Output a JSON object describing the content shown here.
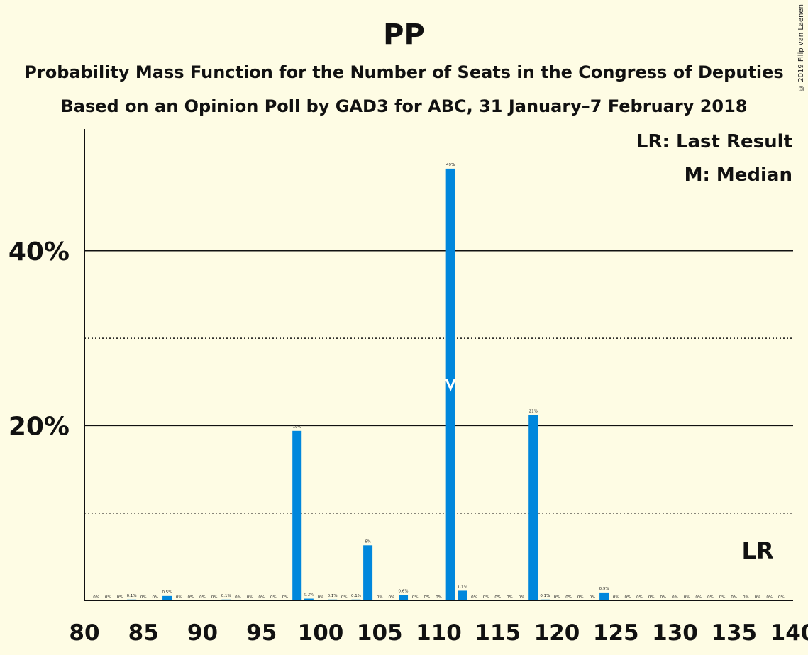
{
  "title": "PP",
  "subtitle1": "Probability Mass Function for the Number of Seats in the Congress of Deputies",
  "subtitle2": "Based on an Opinion Poll by GAD3 for ABC, 31 January–7 February 2018",
  "legend": {
    "last_result": "LR: Last Result",
    "median": "M: Median"
  },
  "copyright": "© 2019 Filip van Laenen",
  "colors": {
    "bar": "#0087DC",
    "background": "#FEFCE4",
    "text": "#111111"
  },
  "chart_data": {
    "type": "bar",
    "xlabel": "",
    "ylabel": "",
    "xlim": [
      80,
      140
    ],
    "ylim": [
      0,
      54
    ],
    "x_ticks": [
      80,
      85,
      90,
      95,
      100,
      105,
      110,
      115,
      120,
      125,
      130,
      135,
      140
    ],
    "y_ticks_major": [
      {
        "value": 20,
        "label": "20%"
      },
      {
        "value": 40,
        "label": "40%"
      }
    ],
    "y_gridlines_dotted": [
      10,
      30
    ],
    "median_seats": 111,
    "last_result_seats": 137,
    "last_result_label": "LR",
    "seats": [
      81,
      82,
      83,
      84,
      85,
      86,
      87,
      88,
      89,
      90,
      91,
      92,
      93,
      94,
      95,
      96,
      97,
      98,
      99,
      100,
      101,
      102,
      103,
      104,
      105,
      106,
      107,
      108,
      109,
      110,
      111,
      112,
      113,
      114,
      115,
      116,
      117,
      118,
      119,
      120,
      121,
      122,
      123,
      124,
      125,
      126,
      127,
      128,
      129,
      130,
      131,
      132,
      133,
      134,
      135,
      136,
      137,
      138,
      139
    ],
    "values": [
      0,
      0,
      0,
      0.1,
      0,
      0,
      0.5,
      0,
      0,
      0,
      0,
      0.1,
      0,
      0,
      0,
      0,
      0,
      19.4,
      0.2,
      0,
      0.1,
      0,
      0.1,
      6.3,
      0,
      0,
      0.6,
      0,
      0,
      0,
      49.4,
      1.1,
      0,
      0,
      0,
      0,
      0,
      21.2,
      0.1,
      0,
      0,
      0,
      0,
      0.9,
      0,
      0,
      0,
      0,
      0,
      0,
      0,
      0,
      0,
      0,
      0,
      0,
      0,
      0,
      0
    ],
    "data_labels": [
      "0%",
      "0%",
      "0%",
      "0.1%",
      "0%",
      "0%",
      "0.5%",
      "0%",
      "0%",
      "0%",
      "0%",
      "0.1%",
      "0%",
      "0%",
      "0%",
      "0%",
      "0%",
      "19%",
      "0.2%",
      "0%",
      "0.1%",
      "0%",
      "0.1%",
      "6%",
      "0%",
      "0%",
      "0.6%",
      "0%",
      "0%",
      "0%",
      "49%",
      "1.1%",
      "0%",
      "0%",
      "0%",
      "0%",
      "0%",
      "21%",
      "0.1%",
      "0%",
      "0%",
      "0%",
      "0%",
      "0.9%",
      "0%",
      "0%",
      "0%",
      "0%",
      "0%",
      "0%",
      "0%",
      "0%",
      "0%",
      "0%",
      "0%",
      "0%",
      "0%",
      "0%",
      "0%"
    ]
  }
}
